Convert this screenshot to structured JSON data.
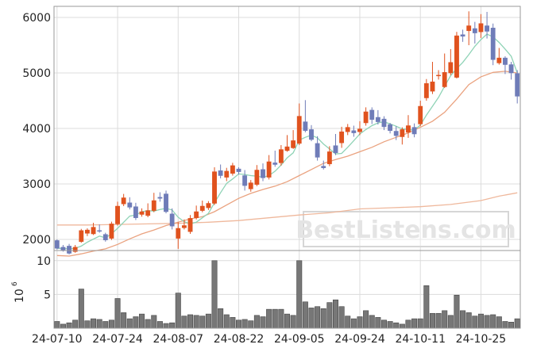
{
  "chart_data": {
    "type": "candlestick",
    "watermark": "BestListens.com",
    "colors": {
      "up": "#e0521e",
      "down": "#6f7cb8",
      "volume": "#777777",
      "ma_short": "#8fd3b6",
      "ma_mid": "#eaa27f",
      "ma_long": "#efb89c"
    },
    "price_axis": {
      "min": 1800,
      "max": 6200,
      "ticks": [
        2000,
        3000,
        4000,
        5000,
        6000
      ]
    },
    "volume_axis": {
      "min": 0,
      "max": 11.5,
      "ticks": [
        5,
        10
      ],
      "scale_label": "10",
      "scale_exponent": "6"
    },
    "x_ticks": [
      {
        "index": 0,
        "label": "24-07-10"
      },
      {
        "index": 10,
        "label": "24-07-24"
      },
      {
        "index": 20,
        "label": "24-08-07"
      },
      {
        "index": 30,
        "label": "24-08-22"
      },
      {
        "index": 40,
        "label": "24-09-05"
      },
      {
        "index": 50,
        "label": "24-09-24"
      },
      {
        "index": 60,
        "label": "24-10-11"
      },
      {
        "index": 70,
        "label": "24-10-25"
      }
    ],
    "candles": [
      [
        1980,
        1840,
        2000,
        1820,
        1.0
      ],
      [
        1860,
        1810,
        1900,
        1780,
        0.6
      ],
      [
        1880,
        1750,
        1920,
        1730,
        0.8
      ],
      [
        1780,
        1860,
        1900,
        1760,
        1.2
      ],
      [
        1960,
        2160,
        2190,
        1940,
        5.8
      ],
      [
        2110,
        2170,
        2200,
        2060,
        1.1
      ],
      [
        2100,
        2220,
        2300,
        2080,
        1.4
      ],
      [
        2160,
        2150,
        2270,
        2120,
        1.3
      ],
      [
        2090,
        1990,
        2120,
        1960,
        1.0
      ],
      [
        2020,
        2280,
        2320,
        1990,
        1.2
      ],
      [
        2280,
        2600,
        2680,
        2250,
        4.4
      ],
      [
        2640,
        2750,
        2820,
        2600,
        2.3
      ],
      [
        2660,
        2580,
        2760,
        2540,
        1.4
      ],
      [
        2590,
        2390,
        2660,
        2350,
        1.7
      ],
      [
        2450,
        2500,
        2560,
        2410,
        2.1
      ],
      [
        2430,
        2520,
        2650,
        2400,
        1.3
      ],
      [
        2520,
        2700,
        2840,
        2490,
        1.9
      ],
      [
        2760,
        2740,
        2850,
        2680,
        1.0
      ],
      [
        2820,
        2500,
        2880,
        2470,
        0.7
      ],
      [
        2460,
        2240,
        2560,
        2180,
        0.8
      ],
      [
        2020,
        2200,
        2310,
        1830,
        5.2
      ],
      [
        2210,
        2250,
        2360,
        2180,
        1.8
      ],
      [
        2140,
        2380,
        2440,
        2100,
        2.0
      ],
      [
        2390,
        2500,
        2610,
        2360,
        1.9
      ],
      [
        2520,
        2600,
        2700,
        2490,
        1.8
      ],
      [
        2570,
        2650,
        2690,
        2530,
        2.1
      ],
      [
        2650,
        3220,
        3300,
        2620,
        10.0
      ],
      [
        3240,
        3150,
        3350,
        3100,
        2.9
      ],
      [
        3120,
        3230,
        3290,
        3050,
        2.0
      ],
      [
        3190,
        3330,
        3380,
        3150,
        1.6
      ],
      [
        3270,
        3220,
        3300,
        3170,
        1.2
      ],
      [
        3150,
        2970,
        3250,
        2880,
        1.3
      ],
      [
        2910,
        3020,
        3070,
        2860,
        1.1
      ],
      [
        2990,
        3250,
        3340,
        2960,
        1.9
      ],
      [
        3260,
        3110,
        3370,
        3050,
        1.7
      ],
      [
        3120,
        3400,
        3520,
        3080,
        2.8
      ],
      [
        3380,
        3350,
        3600,
        3310,
        2.8
      ],
      [
        3380,
        3620,
        3700,
        3330,
        2.8
      ],
      [
        3600,
        3670,
        3880,
        3580,
        2.1
      ],
      [
        3650,
        3780,
        3970,
        3630,
        1.9
      ],
      [
        3730,
        4220,
        4450,
        3700,
        10.0
      ],
      [
        4120,
        3960,
        4510,
        3930,
        3.9
      ],
      [
        3980,
        3800,
        4060,
        3770,
        3.0
      ],
      [
        3730,
        3480,
        3860,
        3420,
        3.2
      ],
      [
        3320,
        3290,
        3420,
        3260,
        2.9
      ],
      [
        3360,
        3580,
        3680,
        3320,
        3.8
      ],
      [
        3690,
        3560,
        3900,
        3520,
        4.2
      ],
      [
        3740,
        3940,
        4030,
        3650,
        3.2
      ],
      [
        3940,
        4020,
        4080,
        3880,
        1.8
      ],
      [
        3960,
        3920,
        4050,
        3850,
        1.4
      ],
      [
        3940,
        3990,
        4130,
        3880,
        1.7
      ],
      [
        4100,
        4300,
        4380,
        4050,
        2.6
      ],
      [
        4330,
        4160,
        4380,
        4080,
        1.9
      ],
      [
        4200,
        4120,
        4330,
        4070,
        1.6
      ],
      [
        4170,
        4030,
        4220,
        3970,
        1.2
      ],
      [
        4070,
        3960,
        4100,
        3910,
        1.0
      ],
      [
        3950,
        3870,
        4040,
        3790,
        0.8
      ],
      [
        3850,
        3980,
        4020,
        3710,
        0.6
      ],
      [
        3930,
        4050,
        4240,
        3830,
        1.2
      ],
      [
        4020,
        3900,
        4090,
        3840,
        1.4
      ],
      [
        4080,
        4400,
        4500,
        4040,
        1.4
      ],
      [
        4550,
        4810,
        4890,
        4500,
        6.3
      ],
      [
        4670,
        4840,
        5200,
        4620,
        2.2
      ],
      [
        4950,
        4960,
        5050,
        4880,
        2.2
      ],
      [
        4750,
        5010,
        5350,
        4730,
        2.6
      ],
      [
        5000,
        5190,
        5430,
        4960,
        1.9
      ],
      [
        4920,
        5670,
        5740,
        4900,
        4.9
      ],
      [
        5690,
        5660,
        5780,
        5560,
        2.6
      ],
      [
        5760,
        5850,
        6110,
        5500,
        2.3
      ],
      [
        5800,
        5720,
        5920,
        5530,
        1.8
      ],
      [
        5740,
        5890,
        6060,
        5630,
        2.1
      ],
      [
        5850,
        5750,
        6100,
        5620,
        1.9
      ],
      [
        5810,
        5240,
        5890,
        5140,
        2.0
      ],
      [
        5180,
        5270,
        5450,
        5150,
        1.7
      ],
      [
        5270,
        5150,
        5300,
        4980,
        1.0
      ],
      [
        5150,
        5000,
        5200,
        4880,
        0.9
      ],
      [
        4990,
        4580,
        5050,
        4450,
        1.4
      ]
    ],
    "ma_short": [
      [
        0,
        1840
      ],
      [
        1,
        1838
      ],
      [
        2,
        1830
      ],
      [
        3,
        1840
      ],
      [
        4,
        1880
      ],
      [
        5,
        1950
      ],
      [
        6,
        2005
      ],
      [
        7,
        2060
      ],
      [
        8,
        2030
      ],
      [
        9,
        2100
      ],
      [
        10,
        2200
      ],
      [
        11,
        2310
      ],
      [
        12,
        2420
      ],
      [
        13,
        2440
      ],
      [
        14,
        2500
      ],
      [
        15,
        2520
      ],
      [
        16,
        2510
      ],
      [
        17,
        2540
      ],
      [
        18,
        2560
      ],
      [
        19,
        2530
      ],
      [
        20,
        2400
      ],
      [
        21,
        2320
      ],
      [
        22,
        2280
      ],
      [
        23,
        2310
      ],
      [
        24,
        2390
      ],
      [
        25,
        2470
      ],
      [
        26,
        2660
      ],
      [
        27,
        2840
      ],
      [
        28,
        3010
      ],
      [
        29,
        3090
      ],
      [
        30,
        3180
      ],
      [
        31,
        3170
      ],
      [
        32,
        3150
      ],
      [
        33,
        3140
      ],
      [
        34,
        3120
      ],
      [
        35,
        3150
      ],
      [
        36,
        3230
      ],
      [
        37,
        3340
      ],
      [
        38,
        3470
      ],
      [
        39,
        3560
      ],
      [
        40,
        3790
      ],
      [
        41,
        3840
      ],
      [
        42,
        3880
      ],
      [
        43,
        3830
      ],
      [
        44,
        3720
      ],
      [
        45,
        3630
      ],
      [
        46,
        3540
      ],
      [
        47,
        3550
      ],
      [
        48,
        3660
      ],
      [
        49,
        3780
      ],
      [
        50,
        3900
      ],
      [
        51,
        3980
      ],
      [
        52,
        4050
      ],
      [
        53,
        4100
      ],
      [
        54,
        4120
      ],
      [
        55,
        4080
      ],
      [
        56,
        4040
      ],
      [
        57,
        3990
      ],
      [
        58,
        3980
      ],
      [
        59,
        3970
      ],
      [
        60,
        4060
      ],
      [
        61,
        4240
      ],
      [
        62,
        4400
      ],
      [
        63,
        4560
      ],
      [
        64,
        4760
      ],
      [
        65,
        4950
      ],
      [
        66,
        5080
      ],
      [
        67,
        5190
      ],
      [
        68,
        5330
      ],
      [
        69,
        5480
      ],
      [
        70,
        5600
      ],
      [
        71,
        5700
      ],
      [
        72,
        5650
      ],
      [
        73,
        5550
      ],
      [
        74,
        5430
      ],
      [
        75,
        5300
      ],
      [
        76,
        5000
      ]
    ],
    "ma_mid": [
      [
        0,
        1710
      ],
      [
        2,
        1700
      ],
      [
        4,
        1740
      ],
      [
        6,
        1790
      ],
      [
        8,
        1830
      ],
      [
        10,
        1910
      ],
      [
        12,
        2010
      ],
      [
        14,
        2100
      ],
      [
        16,
        2170
      ],
      [
        18,
        2250
      ],
      [
        20,
        2310
      ],
      [
        22,
        2370
      ],
      [
        24,
        2410
      ],
      [
        26,
        2500
      ],
      [
        28,
        2620
      ],
      [
        30,
        2740
      ],
      [
        32,
        2830
      ],
      [
        34,
        2900
      ],
      [
        36,
        2960
      ],
      [
        38,
        3040
      ],
      [
        40,
        3150
      ],
      [
        42,
        3260
      ],
      [
        44,
        3370
      ],
      [
        46,
        3440
      ],
      [
        48,
        3500
      ],
      [
        50,
        3580
      ],
      [
        52,
        3660
      ],
      [
        54,
        3760
      ],
      [
        56,
        3840
      ],
      [
        58,
        3920
      ],
      [
        60,
        4020
      ],
      [
        62,
        4130
      ],
      [
        64,
        4290
      ],
      [
        66,
        4530
      ],
      [
        68,
        4790
      ],
      [
        70,
        4930
      ],
      [
        72,
        5010
      ],
      [
        74,
        5030
      ],
      [
        76,
        5000
      ]
    ],
    "ma_long": [
      [
        0,
        2260
      ],
      [
        5,
        2260
      ],
      [
        10,
        2270
      ],
      [
        15,
        2280
      ],
      [
        20,
        2290
      ],
      [
        25,
        2310
      ],
      [
        30,
        2340
      ],
      [
        35,
        2390
      ],
      [
        40,
        2440
      ],
      [
        45,
        2480
      ],
      [
        50,
        2550
      ],
      [
        55,
        2570
      ],
      [
        60,
        2590
      ],
      [
        65,
        2630
      ],
      [
        70,
        2700
      ],
      [
        73,
        2780
      ],
      [
        76,
        2840
      ]
    ]
  }
}
